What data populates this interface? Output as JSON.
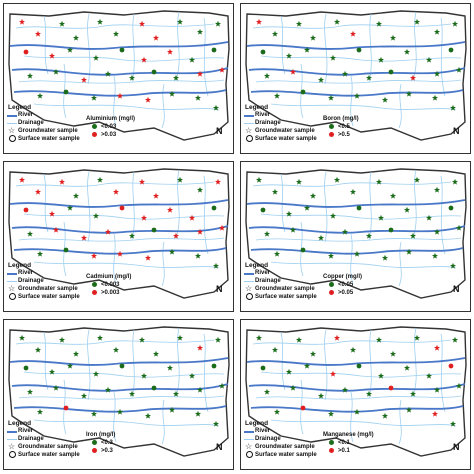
{
  "legend": {
    "title": "Legend",
    "river": "River",
    "drainage": "Drainage",
    "groundwater": "Groundwater sample",
    "surface": "Surface water sample"
  },
  "north_label": "N",
  "colors": {
    "below": "#1a6b1a",
    "above": "#e02020",
    "river": "#4a78c8",
    "drainage": "#9ecff0",
    "boundary": "#333333"
  },
  "panels": [
    {
      "parameter": "Aluminium (mg/l)",
      "below_label": "<0.03",
      "above_label": ">0.03",
      "above_ratio": 0.35
    },
    {
      "parameter": "Boron (mg/l)",
      "below_label": "<0.5",
      "above_label": ">0.5",
      "above_ratio": 0.1
    },
    {
      "parameter": "Cadmium (mg/l)",
      "below_label": "<0.003",
      "above_label": ">0.003",
      "above_ratio": 0.6
    },
    {
      "parameter": "Copper (mg/l)",
      "below_label": "<0.05",
      "above_label": ">0.05",
      "above_ratio": 0.0
    },
    {
      "parameter": "Iron (mg/l)",
      "below_label": "<0.3",
      "above_label": ">0.3",
      "above_ratio": 0.05
    },
    {
      "parameter": "Manganese (mg/l)",
      "below_label": "<0.1",
      "above_label": ">0.1",
      "above_ratio": 0.2
    }
  ]
}
